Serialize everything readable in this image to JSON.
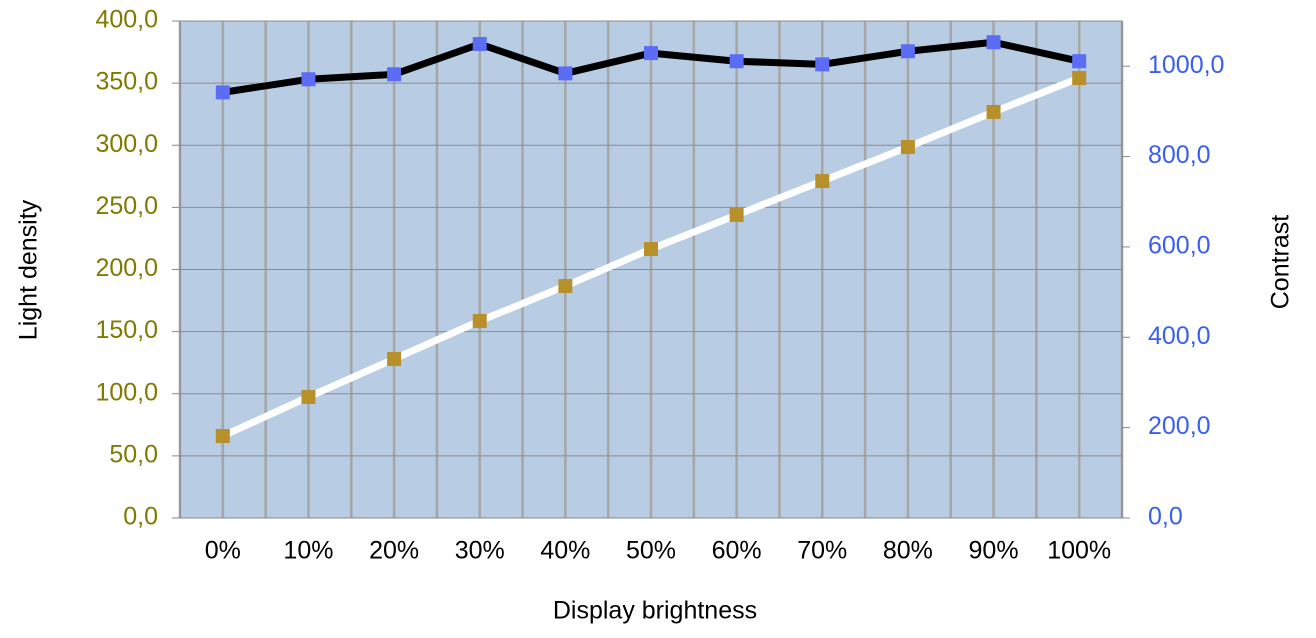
{
  "chart_data": {
    "type": "line",
    "x_label": "Display brightness",
    "y_label": "Light density",
    "y2_label": "Contrast",
    "categories": [
      "0%",
      "10%",
      "20%",
      "30%",
      "40%",
      "50%",
      "60%",
      "70%",
      "80%",
      "90%",
      "100%"
    ],
    "series": [
      {
        "color": "#b8902a",
        "line_color": "#ffffff",
        "values": [
          66.0,
          97.4,
          128.0,
          158.6,
          186.7,
          216.5,
          243.9,
          271.2,
          298.6,
          326.8,
          354.1
        ]
      },
      {
        "color": "#5b6cf5",
        "line_color": "#000000",
        "axis": "y2",
        "values": [
          942,
          971,
          982,
          1049,
          984,
          1029,
          1011,
          1004,
          1033,
          1053,
          1011
        ]
      }
    ],
    "ylim": [
      0,
      400
    ],
    "yticks": [
      {
        "value": 0,
        "label": "0,0"
      },
      {
        "value": 50,
        "label": "50,0"
      },
      {
        "value": 100,
        "label": "100,0"
      },
      {
        "value": 150,
        "label": "150,0"
      },
      {
        "value": 200,
        "label": "200,0"
      },
      {
        "value": 250,
        "label": "250,0"
      },
      {
        "value": 300,
        "label": "300,0"
      },
      {
        "value": 350,
        "label": "350,0"
      },
      {
        "value": 400,
        "label": "400,0"
      }
    ],
    "y2lim": [
      0,
      1100
    ],
    "y2ticks": [
      {
        "value": 0,
        "label": "0,0"
      },
      {
        "value": 200,
        "label": "200,0"
      },
      {
        "value": 400,
        "label": "400,0"
      },
      {
        "value": 600,
        "label": "600,0"
      },
      {
        "value": 800,
        "label": "800,0"
      },
      {
        "value": 1000,
        "label": "1000,0"
      }
    ],
    "y_tick_color": "#7f7a00",
    "y2_tick_color": "#3a5ff0",
    "plot_background": "#b8cce4",
    "grid": true
  }
}
